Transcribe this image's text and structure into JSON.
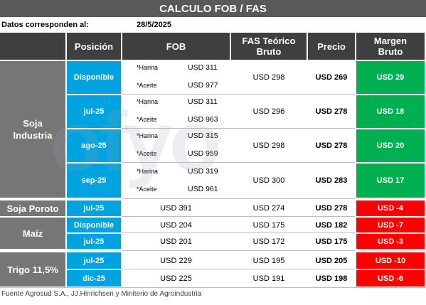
{
  "title": "CALCULO FOB / FAS",
  "date_label": "Datos corresponden al:",
  "date_value": "28/5/2025",
  "headers": {
    "posicion": "Posición",
    "fob": "FOB",
    "fas_line1": "FAS Teórico",
    "fas_line2": "Bruto",
    "precio": "Precio",
    "margen_line1": "Margen",
    "margen_line2": "Bruto"
  },
  "products": {
    "soja_industria_line1": "Soja",
    "soja_industria_line2": "Industria",
    "soja_poroto": "Soja Poroto",
    "maiz": "Maíz",
    "trigo": "Trigo 11,5%"
  },
  "labels": {
    "harina": "*Harina",
    "aceite": "*Aceite"
  },
  "rows": [
    {
      "pos": "Disponible",
      "harina": "USD 311",
      "aceite": "USD 977",
      "fas": "USD 298",
      "precio": "USD 269",
      "margen": "USD 29"
    },
    {
      "pos": "jul-25",
      "harina": "USD 311",
      "aceite": "USD 963",
      "fas": "USD 296",
      "precio": "USD 278",
      "margen": "USD 18"
    },
    {
      "pos": "ago-25",
      "harina": "USD 315",
      "aceite": "USD 959",
      "fas": "USD 298",
      "precio": "USD 278",
      "margen": "USD 20"
    },
    {
      "pos": "sep-25",
      "harina": "USD 319",
      "aceite": "USD 961",
      "fas": "USD 300",
      "precio": "USD 283",
      "margen": "USD 17"
    }
  ],
  "simple_rows": [
    {
      "pos": "jul-25",
      "fob": "USD 391",
      "fas": "USD 274",
      "precio": "USD 278",
      "margen": "USD -4"
    },
    {
      "pos": "Disponible",
      "fob": "USD 204",
      "fas": "USD 175",
      "precio": "USD 182",
      "margen": "USD -7"
    },
    {
      "pos": "jul-25",
      "fob": "USD 201",
      "fas": "USD 172",
      "precio": "USD 175",
      "margen": "USD -3"
    },
    {
      "pos": "jul-25",
      "fob": "USD 229",
      "fas": "USD 195",
      "precio": "USD 205",
      "margen": "USD -10"
    },
    {
      "pos": "dic-25",
      "fob": "USD 225",
      "fas": "USD 191",
      "precio": "USD 198",
      "margen": "USD -6"
    }
  ],
  "watermark": "ofyo",
  "footer": "Fuente Agrosud S.A., JJ.Hinrichsen y Miniterio de Agroindustria",
  "colors": {
    "title_bg": "#595959",
    "header_bg": "#3f3f3f",
    "product_bg": "#767676",
    "position_bg": "#00a3e0",
    "positive_margin": "#00b050",
    "negative_margin": "#ff0000"
  }
}
